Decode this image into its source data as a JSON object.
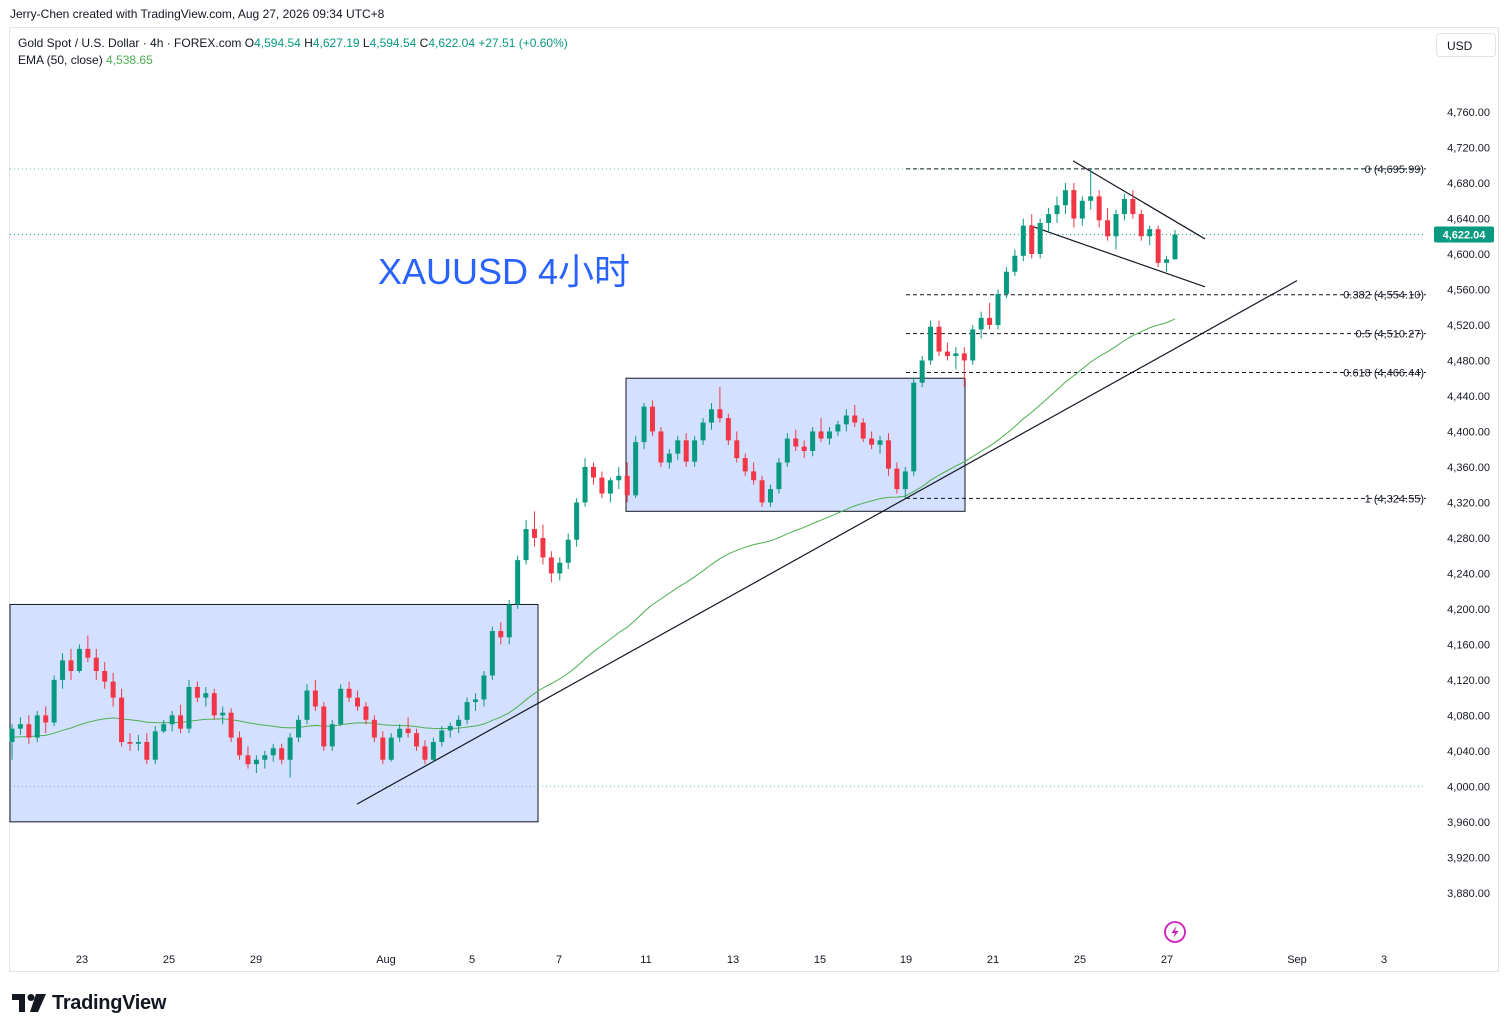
{
  "attribution": "Jerry-Chen created with TradingView.com, Aug 27, 2026 09:34 UTC+8",
  "currency_button": "USD",
  "legend": {
    "symbol": "Gold Spot / U.S. Dollar · 4h · FOREX.com",
    "o_label": "O",
    "o_value": "4,594.54",
    "h_label": "H",
    "h_value": "4,627.19",
    "l_label": "L",
    "l_value": "4,594.54",
    "c_label": "C",
    "c_value": "4,622.04",
    "change": "+27.51 (+0.60%)",
    "ema_label": "EMA (50, close)",
    "ema_value": "4,538.65"
  },
  "brand": "TradingView",
  "chart_data": {
    "type": "candlestick",
    "annotation": "XAUUSD 4小时",
    "last_price": 4622.04,
    "last_price_label": "4,622.04",
    "ylim": [
      3855,
      4795
    ],
    "y_ticks": [
      3880,
      3920,
      3960,
      4000,
      4040,
      4080,
      4120,
      4160,
      4200,
      4240,
      4280,
      4320,
      4360,
      4400,
      4440,
      4480,
      4520,
      4560,
      4600,
      4640,
      4680,
      4720,
      4760
    ],
    "y_tick_labels": [
      "3,880.00",
      "3,920.00",
      "3,960.00",
      "4,000.00",
      "4,040.00",
      "4,080.00",
      "4,120.00",
      "4,160.00",
      "4,200.00",
      "4,240.00",
      "4,280.00",
      "4,320.00",
      "4,360.00",
      "4,400.00",
      "4,440.00",
      "4,480.00",
      "4,520.00",
      "4,560.00",
      "4,600.00",
      "4,640.00",
      "4,680.00",
      "4,720.00",
      "4,760.00"
    ],
    "x_tick_labels": [
      "23",
      "25",
      "29",
      "Aug",
      "5",
      "7",
      "11",
      "13",
      "15",
      "19",
      "21",
      "25",
      "27",
      "Sep",
      "3"
    ],
    "fib_levels": [
      {
        "label": "0 (4,695.99)",
        "value": 4695.99
      },
      {
        "label": "0.382 (4,554.10)",
        "value": 4554.1
      },
      {
        "label": "0.5 (4,510.27)",
        "value": 4510.27
      },
      {
        "label": "0.618 (4,466.44)",
        "value": 4466.44
      },
      {
        "label": "1 (4,324.55)",
        "value": 4324.55
      }
    ],
    "horizontal_dotted_lines": [
      4695.99,
      4622.04,
      4000
    ],
    "consolidation_boxes": [
      {
        "from_date": "Jul 22",
        "to_date": "Aug 6",
        "price_low": 3960,
        "price_high": 4205
      },
      {
        "from_date": "Aug 9",
        "to_date": "Aug 20",
        "price_low": 4310,
        "price_high": 4460
      }
    ],
    "trendlines": [
      {
        "from": [
          "Aug 1",
          3980
        ],
        "to": [
          "Aug 29",
          4570
        ]
      },
      {
        "from": [
          "Aug 24",
          4705
        ],
        "to": [
          "Aug 27",
          4617
        ]
      },
      {
        "from": [
          "Aug 22",
          4632
        ],
        "to": [
          "Aug 27",
          4563
        ]
      }
    ],
    "candles_ohlc": [
      [
        4050,
        4070,
        4030,
        4065
      ],
      [
        4065,
        4078,
        4058,
        4070
      ],
      [
        4070,
        4080,
        4048,
        4055
      ],
      [
        4055,
        4085,
        4050,
        4080
      ],
      [
        4080,
        4090,
        4060,
        4072
      ],
      [
        4072,
        4125,
        4068,
        4120
      ],
      [
        4120,
        4150,
        4110,
        4142
      ],
      [
        4142,
        4155,
        4120,
        4130
      ],
      [
        4130,
        4160,
        4128,
        4155
      ],
      [
        4155,
        4170,
        4140,
        4145
      ],
      [
        4145,
        4155,
        4120,
        4130
      ],
      [
        4130,
        4140,
        4110,
        4118
      ],
      [
        4118,
        4128,
        4090,
        4100
      ],
      [
        4100,
        4110,
        4045,
        4050
      ],
      [
        4050,
        4060,
        4040,
        4048
      ],
      [
        4048,
        4058,
        4040,
        4050
      ],
      [
        4050,
        4060,
        4025,
        4030
      ],
      [
        4030,
        4068,
        4025,
        4062
      ],
      [
        4062,
        4075,
        4060,
        4070
      ],
      [
        4070,
        4085,
        4062,
        4080
      ],
      [
        4080,
        4092,
        4060,
        4065
      ],
      [
        4065,
        4120,
        4060,
        4112
      ],
      [
        4112,
        4118,
        4095,
        4100
      ],
      [
        4100,
        4112,
        4090,
        4105
      ],
      [
        4105,
        4110,
        4075,
        4080
      ],
      [
        4080,
        4090,
        4070,
        4083
      ],
      [
        4083,
        4088,
        4050,
        4055
      ],
      [
        4055,
        4062,
        4030,
        4035
      ],
      [
        4035,
        4045,
        4020,
        4025
      ],
      [
        4025,
        4035,
        4015,
        4030
      ],
      [
        4030,
        4040,
        4020,
        4035
      ],
      [
        4035,
        4048,
        4028,
        4043
      ],
      [
        4043,
        4048,
        4025,
        4030
      ],
      [
        4030,
        4060,
        4010,
        4055
      ],
      [
        4055,
        4080,
        4050,
        4075
      ],
      [
        4075,
        4115,
        4070,
        4108
      ],
      [
        4108,
        4120,
        4085,
        4090
      ],
      [
        4090,
        4095,
        4040,
        4045
      ],
      [
        4045,
        4075,
        4040,
        4070
      ],
      [
        4070,
        4115,
        4068,
        4110
      ],
      [
        4110,
        4118,
        4095,
        4100
      ],
      [
        4100,
        4108,
        4085,
        4090
      ],
      [
        4090,
        4095,
        4070,
        4075
      ],
      [
        4075,
        4080,
        4050,
        4055
      ],
      [
        4055,
        4062,
        4025,
        4030
      ],
      [
        4030,
        4060,
        4028,
        4055
      ],
      [
        4055,
        4070,
        4050,
        4065
      ],
      [
        4065,
        4078,
        4055,
        4060
      ],
      [
        4060,
        4065,
        4040,
        4045
      ],
      [
        4045,
        4052,
        4025,
        4030
      ],
      [
        4030,
        4055,
        4028,
        4050
      ],
      [
        4050,
        4068,
        4045,
        4063
      ],
      [
        4063,
        4072,
        4055,
        4068
      ],
      [
        4068,
        4080,
        4060,
        4075
      ],
      [
        4075,
        4100,
        4070,
        4095
      ],
      [
        4095,
        4105,
        4085,
        4098
      ],
      [
        4098,
        4130,
        4090,
        4125
      ],
      [
        4125,
        4180,
        4120,
        4175
      ],
      [
        4175,
        4185,
        4160,
        4168
      ],
      [
        4168,
        4210,
        4160,
        4205
      ],
      [
        4205,
        4260,
        4200,
        4255
      ],
      [
        4255,
        4300,
        4250,
        4290
      ],
      [
        4290,
        4310,
        4270,
        4280
      ],
      [
        4280,
        4295,
        4250,
        4258
      ],
      [
        4258,
        4265,
        4230,
        4240
      ],
      [
        4240,
        4258,
        4232,
        4252
      ],
      [
        4252,
        4285,
        4245,
        4278
      ],
      [
        4278,
        4325,
        4270,
        4320
      ],
      [
        4320,
        4370,
        4315,
        4360
      ],
      [
        4360,
        4365,
        4340,
        4348
      ],
      [
        4348,
        4355,
        4325,
        4330
      ],
      [
        4330,
        4348,
        4320,
        4345
      ],
      [
        4345,
        4360,
        4335,
        4350
      ],
      [
        4350,
        4365,
        4320,
        4328
      ],
      [
        4328,
        4395,
        4325,
        4388
      ],
      [
        4388,
        4432,
        4380,
        4428
      ],
      [
        4428,
        4435,
        4395,
        4400
      ],
      [
        4400,
        4405,
        4360,
        4365
      ],
      [
        4365,
        4380,
        4358,
        4375
      ],
      [
        4375,
        4395,
        4368,
        4390
      ],
      [
        4390,
        4398,
        4360,
        4366
      ],
      [
        4366,
        4395,
        4360,
        4390
      ],
      [
        4390,
        4415,
        4385,
        4410
      ],
      [
        4410,
        4432,
        4402,
        4425
      ],
      [
        4425,
        4450,
        4410,
        4415
      ],
      [
        4415,
        4420,
        4385,
        4390
      ],
      [
        4390,
        4400,
        4365,
        4370
      ],
      [
        4370,
        4375,
        4350,
        4355
      ],
      [
        4355,
        4365,
        4340,
        4345
      ],
      [
        4345,
        4350,
        4315,
        4320
      ],
      [
        4320,
        4340,
        4315,
        4335
      ],
      [
        4335,
        4370,
        4330,
        4365
      ],
      [
        4365,
        4398,
        4360,
        4392
      ],
      [
        4392,
        4402,
        4378,
        4383
      ],
      [
        4383,
        4390,
        4370,
        4378
      ],
      [
        4378,
        4405,
        4372,
        4400
      ],
      [
        4400,
        4415,
        4388,
        4392
      ],
      [
        4392,
        4405,
        4385,
        4400
      ],
      [
        4400,
        4412,
        4395,
        4408
      ],
      [
        4408,
        4425,
        4400,
        4418
      ],
      [
        4418,
        4430,
        4405,
        4410
      ],
      [
        4410,
        4415,
        4388,
        4392
      ],
      [
        4392,
        4400,
        4380,
        4385
      ],
      [
        4385,
        4395,
        4375,
        4390
      ],
      [
        4390,
        4398,
        4350,
        4358
      ],
      [
        4358,
        4365,
        4330,
        4335
      ],
      [
        4335,
        4360,
        4325,
        4355
      ],
      [
        4355,
        4460,
        4350,
        4455
      ],
      [
        4455,
        4485,
        4450,
        4480
      ],
      [
        4480,
        4525,
        4475,
        4518
      ],
      [
        4518,
        4525,
        4485,
        4490
      ],
      [
        4490,
        4500,
        4480,
        4485
      ],
      [
        4485,
        4495,
        4470,
        4488
      ],
      [
        4488,
        4495,
        4450,
        4480
      ],
      [
        4480,
        4520,
        4475,
        4515
      ],
      [
        4515,
        4535,
        4505,
        4528
      ],
      [
        4528,
        4545,
        4515,
        4520
      ],
      [
        4520,
        4560,
        4515,
        4555
      ],
      [
        4555,
        4585,
        4550,
        4580
      ],
      [
        4580,
        4605,
        4575,
        4598
      ],
      [
        4598,
        4640,
        4592,
        4632
      ],
      [
        4632,
        4645,
        4595,
        4600
      ],
      [
        4600,
        4640,
        4595,
        4635
      ],
      [
        4635,
        4652,
        4625,
        4645
      ],
      [
        4645,
        4665,
        4635,
        4655
      ],
      [
        4655,
        4680,
        4645,
        4672
      ],
      [
        4672,
        4680,
        4630,
        4640
      ],
      [
        4640,
        4665,
        4632,
        4660
      ],
      [
        4660,
        4696,
        4650,
        4665
      ],
      [
        4665,
        4672,
        4630,
        4638
      ],
      [
        4638,
        4652,
        4615,
        4620
      ],
      [
        4620,
        4650,
        4605,
        4645
      ],
      [
        4645,
        4668,
        4638,
        4662
      ],
      [
        4662,
        4672,
        4640,
        4645
      ],
      [
        4645,
        4650,
        4615,
        4620
      ],
      [
        4620,
        4632,
        4610,
        4628
      ],
      [
        4628,
        4632,
        4585,
        4590
      ],
      [
        4590,
        4598,
        4580,
        4594
      ],
      [
        4594,
        4627,
        4594,
        4622
      ]
    ]
  }
}
